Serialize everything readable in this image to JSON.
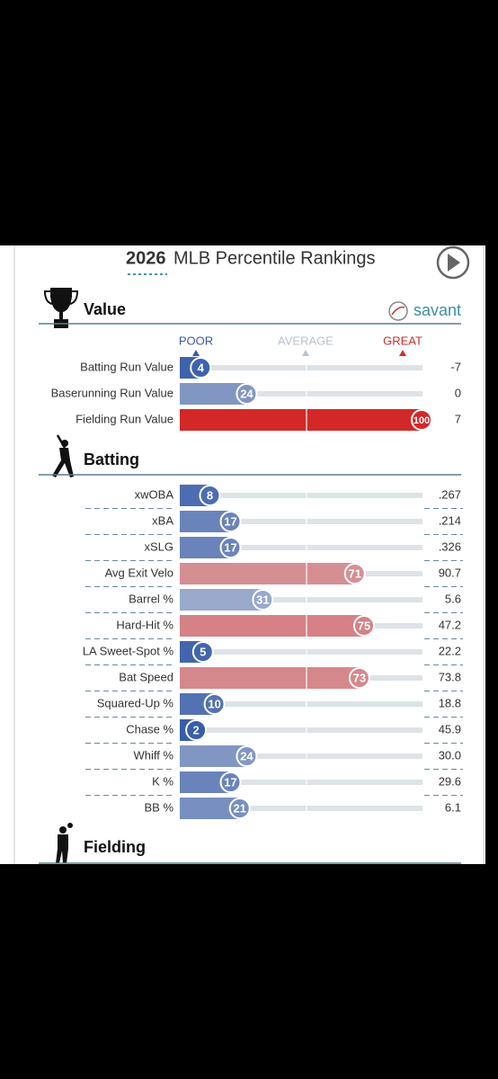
{
  "header": {
    "title_year": "2026",
    "title": "MLB Percentile Rankings"
  },
  "sections": [
    {
      "title": "Value",
      "brand": "savant",
      "scale": {
        "poor": "POOR",
        "average": "AVERAGE",
        "great": "GREAT"
      },
      "rows": [
        {
          "label": "Batting Run Value",
          "percentile": 4,
          "value": "-7"
        },
        {
          "label": "Baserunning Run Value",
          "percentile": 24,
          "value": "0"
        },
        {
          "label": "Fielding Run Value",
          "percentile": 100,
          "value": "7"
        }
      ]
    },
    {
      "title": "Batting",
      "rows": [
        {
          "label": "xwOBA",
          "percentile": 8,
          "value": ".267"
        },
        {
          "label": "xBA",
          "percentile": 17,
          "value": ".214"
        },
        {
          "label": "xSLG",
          "percentile": 17,
          "value": ".326"
        },
        {
          "label": "Avg Exit Velo",
          "percentile": 71,
          "value": "90.7"
        },
        {
          "label": "Barrel %",
          "percentile": 31,
          "value": "5.6"
        },
        {
          "label": "Hard-Hit %",
          "percentile": 75,
          "value": "47.2"
        },
        {
          "label": "LA Sweet-Spot %",
          "percentile": 5,
          "value": "22.2"
        },
        {
          "label": "Bat Speed",
          "percentile": 73,
          "value": "73.8"
        },
        {
          "label": "Squared-Up %",
          "percentile": 10,
          "value": "18.8"
        },
        {
          "label": "Chase %",
          "percentile": 2,
          "value": "45.9"
        },
        {
          "label": "Whiff %",
          "percentile": 24,
          "value": "30.0"
        },
        {
          "label": "K %",
          "percentile": 17,
          "value": "29.6"
        },
        {
          "label": "BB %",
          "percentile": 21,
          "value": "6.1"
        }
      ]
    },
    {
      "title": "Fielding"
    }
  ]
}
